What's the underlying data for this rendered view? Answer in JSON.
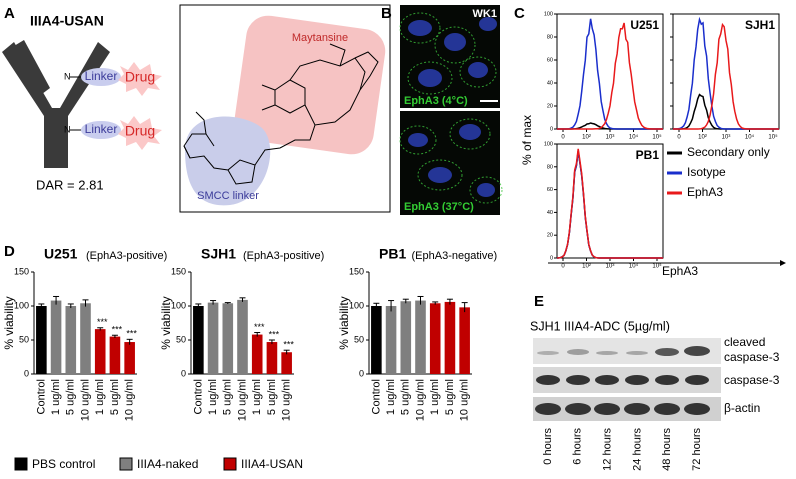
{
  "figure": {
    "A": {
      "letter": "A",
      "title": "IIIA4-USAN",
      "linker": [
        "Linker",
        "Linker"
      ],
      "drug": [
        "Drug",
        "Drug"
      ],
      "dar": "DAR = 2.81",
      "maytansine": "Maytansine",
      "smcc": "SMCC linker"
    },
    "B": {
      "letter": "B",
      "cell_line": "WK1",
      "top": "EphA3 (4°C)",
      "bottom": "EphA3 (37°C)"
    },
    "C": {
      "letter": "C",
      "panels": [
        "U251",
        "SJH1",
        "PB1"
      ],
      "y_label": "% of max",
      "x_label": "EphA3",
      "yticks": [
        "0",
        "20",
        "40",
        "60",
        "80",
        "100"
      ],
      "xticks": [
        "0",
        "10²",
        "10³",
        "10⁴",
        "10⁵"
      ],
      "legend": [
        {
          "label": "Secondary only",
          "color": "#000000"
        },
        {
          "label": "Isotype",
          "color": "#1a2ecc"
        },
        {
          "label": "EphA3",
          "color": "#e8191b"
        }
      ]
    },
    "D": {
      "letter": "D"
    },
    "E": {
      "letter": "E",
      "title": "SJH1 IIIA4-ADC (5µg/ml)",
      "rows": [
        "cleaved",
        "caspase-3",
        "caspase-3",
        "β-actin"
      ],
      "times": [
        "0 hours",
        "6 hours",
        "12 hours",
        "24 hours",
        "48 hours",
        "72 hours"
      ]
    }
  },
  "chart_data": [
    {
      "type": "bar",
      "title": "U251",
      "subtitle": "(EphA3-positive)",
      "y_label": "% viability",
      "categories": [
        "Control",
        "1 ug/ml",
        "5 ug/ml",
        "10 ug/ml",
        "1 ug/ml",
        "5 ug/ml",
        "10 ug/ml"
      ],
      "series": [
        {
          "name": "PBS control",
          "color": "#000000",
          "values": [
            100,
            null,
            null,
            null,
            null,
            null,
            null
          ]
        },
        {
          "name": "IIIA4-naked",
          "color": "#7f7f7f",
          "values": [
            null,
            108,
            100,
            104,
            null,
            null,
            null
          ]
        },
        {
          "name": "IIIA4-USAN",
          "color": "#c00000",
          "values": [
            null,
            null,
            null,
            null,
            66,
            55,
            47
          ]
        }
      ],
      "errors": [
        3,
        6,
        3,
        5,
        2,
        2,
        4
      ],
      "significance": [
        null,
        null,
        null,
        null,
        "***",
        "***",
        "***"
      ],
      "ylim": [
        0,
        150
      ],
      "yticks": [
        0,
        50,
        100,
        150
      ]
    },
    {
      "type": "bar",
      "title": "SJH1",
      "subtitle": "(EphA3-positive)",
      "y_label": "% viability",
      "categories": [
        "Control",
        "1 ug/ml",
        "5 ug/ml",
        "10 ug/ml",
        "1 ug/ml",
        "5 ug/ml",
        "10 ug/ml"
      ],
      "series": [
        {
          "name": "PBS control",
          "color": "#000000",
          "values": [
            100,
            null,
            null,
            null,
            null,
            null,
            null
          ]
        },
        {
          "name": "IIIA4-naked",
          "color": "#7f7f7f",
          "values": [
            null,
            105,
            104,
            109,
            null,
            null,
            null
          ]
        },
        {
          "name": "IIIA4-USAN",
          "color": "#c00000",
          "values": [
            null,
            null,
            null,
            null,
            58,
            47,
            32
          ]
        }
      ],
      "errors": [
        3,
        3,
        1,
        3,
        3,
        3,
        3
      ],
      "significance": [
        null,
        null,
        null,
        null,
        "***",
        "***",
        "***"
      ],
      "ylim": [
        0,
        150
      ],
      "yticks": [
        0,
        50,
        100,
        150
      ]
    },
    {
      "type": "bar",
      "title": "PB1",
      "subtitle": "(EphA3-negative)",
      "y_label": "% viability",
      "categories": [
        "Control",
        "1 ug/ml",
        "5 ug/ml",
        "10 ug/ml",
        "1 ug/ml",
        "5 ug/ml",
        "10 ug/ml"
      ],
      "series": [
        {
          "name": "PBS control",
          "color": "#000000",
          "values": [
            100,
            null,
            null,
            null,
            null,
            null,
            null
          ]
        },
        {
          "name": "IIIA4-naked",
          "color": "#7f7f7f",
          "values": [
            null,
            100,
            107,
            108,
            null,
            null,
            null
          ]
        },
        {
          "name": "IIIA4-USAN",
          "color": "#c00000",
          "values": [
            null,
            null,
            null,
            null,
            104,
            106,
            98
          ]
        }
      ],
      "errors": [
        4,
        8,
        3,
        6,
        2,
        4,
        7
      ],
      "significance": [
        null,
        null,
        null,
        null,
        null,
        null,
        null
      ],
      "ylim": [
        0,
        150
      ],
      "yticks": [
        0,
        50,
        100,
        150
      ]
    }
  ]
}
